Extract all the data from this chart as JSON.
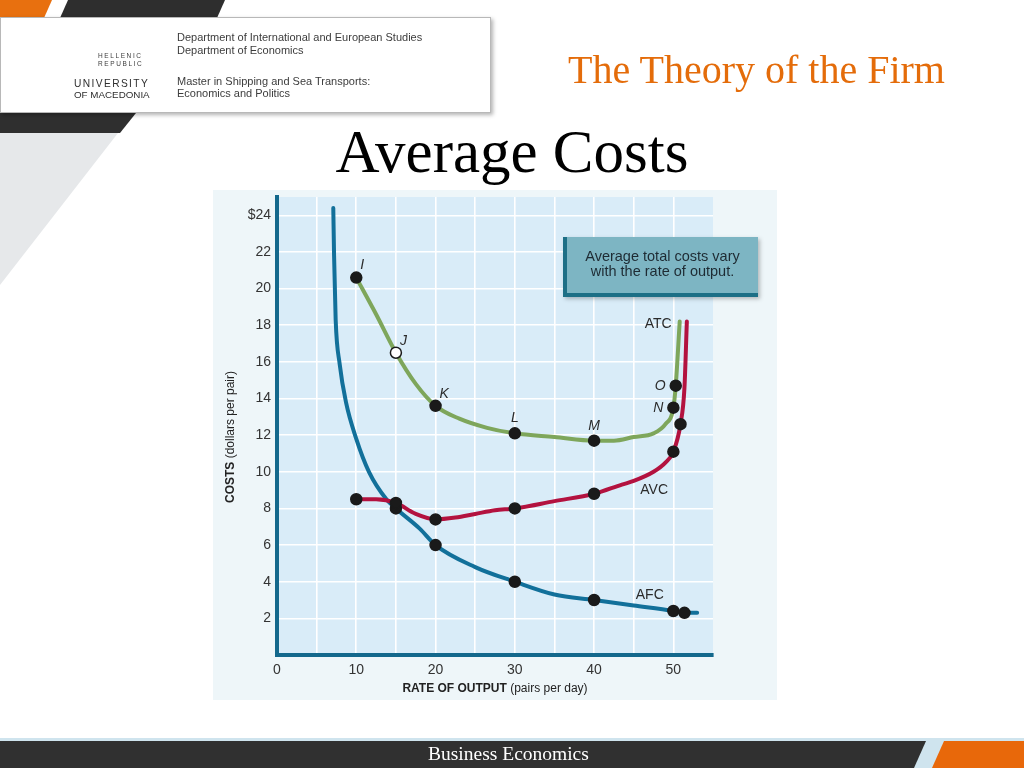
{
  "chart_data": {
    "type": "line",
    "title": "Average Costs",
    "xlabel": "RATE OF OUTPUT (pairs per day)",
    "ylabel": "COSTS (dollars per pair)",
    "xlim": [
      0,
      55
    ],
    "ylim": [
      0,
      25
    ],
    "xticks": [
      0,
      {
        "value": 5,
        "label": null
      },
      10,
      {
        "value": 15,
        "label": null
      },
      20,
      {
        "value": 25,
        "label": null
      },
      30,
      {
        "value": 35,
        "label": null
      },
      40,
      {
        "value": 45,
        "label": null
      },
      50
    ],
    "yticks": [
      2,
      4,
      6,
      8,
      10,
      12,
      14,
      16,
      18,
      20,
      22,
      {
        "value": 24,
        "label": "$24"
      }
    ],
    "grid": true,
    "series": [
      {
        "name": "ATC",
        "type": "line",
        "color": "#7ea65b",
        "marker": "none",
        "x": [
          10,
          12.5,
          15,
          17.5,
          20,
          23,
          26.5,
          30,
          35,
          40,
          42.5,
          45,
          47.5,
          49,
          50,
          50.3,
          50.8
        ],
        "values": [
          20.6,
          18.6,
          16.5,
          14.8,
          13.6,
          12.9,
          12.4,
          12.1,
          11.9,
          11.7,
          11.7,
          11.9,
          12.1,
          12.6,
          13.5,
          14.7,
          18.2
        ]
      },
      {
        "name": "AVC",
        "type": "line",
        "color": "#b3123f",
        "marker": "none",
        "x": [
          10,
          12.5,
          15,
          17.5,
          20,
          22.5,
          25,
          27.5,
          30,
          35,
          40,
          43.5,
          45,
          47.5,
          49,
          50,
          50.9,
          51.4,
          51.7
        ],
        "values": [
          8.5,
          8.5,
          8.3,
          7.7,
          7.4,
          7.5,
          7.7,
          7.9,
          8.0,
          8.4,
          8.8,
          9.3,
          9.5,
          10.0,
          10.5,
          11.1,
          12.6,
          14.6,
          18.2
        ]
      },
      {
        "name": "AFC",
        "type": "line",
        "color": "#12709a",
        "marker": "none",
        "x": [
          7.1,
          7.2,
          7.4,
          7.9,
          8.7,
          10,
          11.6,
          13.8,
          15,
          18,
          20,
          25,
          30,
          35,
          40,
          45,
          50,
          51.4,
          53
        ],
        "values": [
          24.4,
          21.8,
          18.3,
          15.9,
          13.8,
          11.8,
          10,
          8.5,
          8.0,
          6.9,
          6.0,
          4.8,
          4.0,
          3.3,
          3.0,
          2.7,
          2.4,
          2.3,
          2.3
        ]
      },
      {
        "type": "scatter",
        "marker": "circle",
        "x": [
          10,
          15,
          20,
          30,
          40,
          50,
          50.3
        ],
        "values": [
          20.6,
          16.5,
          13.6,
          12.1,
          11.7,
          13.5,
          14.7
        ],
        "colors": [
          "#1a1a1a",
          "#ffffff",
          "#1a1a1a",
          "#1a1a1a",
          "#1a1a1a",
          "#1a1a1a",
          "#1a1a1a"
        ]
      },
      {
        "type": "scatter",
        "marker": "circle",
        "x": [
          10,
          15,
          20,
          30,
          40,
          50,
          50.9
        ],
        "values": [
          8.5,
          8.3,
          7.4,
          8.0,
          8.8,
          11.1,
          12.6
        ],
        "color": "#1a1a1a"
      },
      {
        "type": "scatter",
        "marker": "circle",
        "x": [
          15,
          20,
          30,
          40,
          50,
          51.4
        ],
        "values": [
          8.0,
          6.0,
          4.0,
          3.0,
          2.4,
          2.3
        ],
        "color": "#1a1a1a"
      }
    ],
    "annotations": [
      "The Theory of the Firm",
      "Department of International and European Studies",
      "Department of Economics",
      "Master in Shipping and Sea Transports:",
      "Economics and Politics",
      "HELLENIC",
      "REPUBLIC",
      "UNIVERSITY",
      "OF MACEDONIA",
      "Average total costs vary with the rate of output.",
      "Business Economics",
      {
        "text": "I",
        "x": 10,
        "y": 20.6
      },
      {
        "text": "J",
        "x": 15,
        "y": 16.5
      },
      {
        "text": "K",
        "x": 20,
        "y": 13.6
      },
      {
        "text": "L",
        "x": 30,
        "y": 12.1
      },
      {
        "text": "M",
        "x": 40,
        "y": 11.7
      },
      {
        "text": "N",
        "x": 50,
        "y": 13.5
      },
      {
        "text": "O",
        "x": 50.3,
        "y": 14.7
      }
    ]
  }
}
